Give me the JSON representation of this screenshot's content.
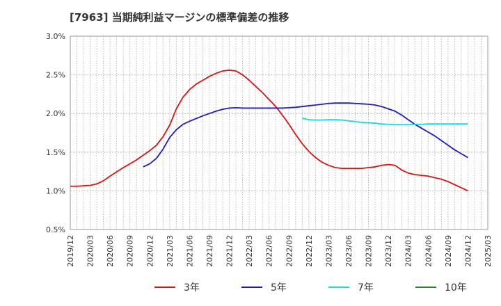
{
  "chart_data": {
    "type": "line",
    "title": "[7963]  当期純利益マージンの標準偏差の推移",
    "xlabel": "",
    "ylabel": "",
    "ylim": [
      0.5,
      3.0
    ],
    "y_ticks": [
      "0.5%",
      "1.0%",
      "1.5%",
      "2.0%",
      "2.5%",
      "3.0%"
    ],
    "x_ticks": [
      "2019/12",
      "2020/03",
      "2020/06",
      "2020/09",
      "2020/12",
      "2021/03",
      "2021/06",
      "2021/09",
      "2021/12",
      "2022/03",
      "2022/06",
      "2022/09",
      "2022/12",
      "2023/03",
      "2023/06",
      "2023/09",
      "2023/12",
      "2024/03",
      "2024/06",
      "2024/09",
      "2024/12",
      "2025/03"
    ],
    "grid": true,
    "legend_position": "bottom",
    "series": [
      {
        "name": "3年",
        "color": "#dd1111",
        "x": [
          "2019/12",
          "2020/01",
          "2020/02",
          "2020/03",
          "2020/04",
          "2020/05",
          "2020/06",
          "2020/07",
          "2020/08",
          "2020/09",
          "2020/10",
          "2020/11",
          "2020/12",
          "2021/01",
          "2021/02",
          "2021/03",
          "2021/04",
          "2021/05",
          "2021/06",
          "2021/07",
          "2021/08",
          "2021/09",
          "2021/10",
          "2021/11",
          "2021/12",
          "2022/01",
          "2022/02",
          "2022/03",
          "2022/04",
          "2022/05",
          "2022/06",
          "2022/07",
          "2022/08",
          "2022/09",
          "2022/10",
          "2022/11",
          "2022/12",
          "2023/01",
          "2023/02",
          "2023/03",
          "2023/04",
          "2023/05",
          "2023/06",
          "2023/07",
          "2023/08",
          "2023/09",
          "2023/10",
          "2023/11",
          "2023/12",
          "2024/01",
          "2024/02",
          "2024/03",
          "2024/04",
          "2024/05",
          "2024/06",
          "2024/07",
          "2024/08",
          "2024/09",
          "2024/10",
          "2024/11",
          "2024/12"
        ],
        "values": [
          1.06,
          1.06,
          1.065,
          1.07,
          1.09,
          1.13,
          1.19,
          1.245,
          1.3,
          1.35,
          1.4,
          1.46,
          1.52,
          1.59,
          1.7,
          1.85,
          2.06,
          2.21,
          2.31,
          2.38,
          2.43,
          2.48,
          2.52,
          2.55,
          2.56,
          2.55,
          2.5,
          2.43,
          2.35,
          2.27,
          2.18,
          2.09,
          1.98,
          1.86,
          1.73,
          1.61,
          1.51,
          1.43,
          1.37,
          1.33,
          1.3,
          1.29,
          1.29,
          1.29,
          1.29,
          1.3,
          1.31,
          1.33,
          1.34,
          1.33,
          1.27,
          1.23,
          1.21,
          1.2,
          1.19,
          1.17,
          1.15,
          1.12,
          1.08,
          1.04,
          1.0
        ]
      },
      {
        "name": "5年",
        "color": "#1a1acc",
        "x": [
          "2020/11",
          "2020/12",
          "2021/01",
          "2021/02",
          "2021/03",
          "2021/04",
          "2021/05",
          "2021/06",
          "2021/07",
          "2021/08",
          "2021/09",
          "2021/10",
          "2021/11",
          "2021/12",
          "2022/01",
          "2022/02",
          "2022/03",
          "2022/04",
          "2022/05",
          "2022/06",
          "2022/07",
          "2022/08",
          "2022/09",
          "2022/10",
          "2022/11",
          "2022/12",
          "2023/01",
          "2023/02",
          "2023/03",
          "2023/04",
          "2023/05",
          "2023/06",
          "2023/07",
          "2023/08",
          "2023/09",
          "2023/10",
          "2023/11",
          "2023/12",
          "2024/01",
          "2024/02",
          "2024/03",
          "2024/04",
          "2024/05",
          "2024/06",
          "2024/07",
          "2024/08",
          "2024/09",
          "2024/10",
          "2024/11",
          "2024/12"
        ],
        "values": [
          1.31,
          1.35,
          1.42,
          1.54,
          1.69,
          1.79,
          1.86,
          1.9,
          1.935,
          1.97,
          2.0,
          2.03,
          2.055,
          2.07,
          2.075,
          2.07,
          2.07,
          2.07,
          2.07,
          2.07,
          2.07,
          2.07,
          2.075,
          2.08,
          2.09,
          2.1,
          2.11,
          2.12,
          2.13,
          2.135,
          2.135,
          2.135,
          2.13,
          2.125,
          2.12,
          2.11,
          2.09,
          2.06,
          2.03,
          1.98,
          1.92,
          1.86,
          1.81,
          1.76,
          1.71,
          1.65,
          1.59,
          1.53,
          1.48,
          1.43
        ]
      },
      {
        "name": "7年",
        "color": "#11dddd",
        "x": [
          "2022/11",
          "2022/12",
          "2023/01",
          "2023/02",
          "2023/03",
          "2023/04",
          "2023/05",
          "2023/06",
          "2023/07",
          "2023/08",
          "2023/09",
          "2023/10",
          "2023/11",
          "2023/12",
          "2024/01",
          "2024/02",
          "2024/03",
          "2024/04",
          "2024/05",
          "2024/06",
          "2024/07",
          "2024/08",
          "2024/09",
          "2024/10",
          "2024/11",
          "2024/12"
        ],
        "values": [
          1.94,
          1.92,
          1.915,
          1.915,
          1.92,
          1.92,
          1.915,
          1.905,
          1.895,
          1.885,
          1.88,
          1.875,
          1.865,
          1.86,
          1.855,
          1.855,
          1.855,
          1.86,
          1.86,
          1.865,
          1.865,
          1.865,
          1.865,
          1.865,
          1.865,
          1.865
        ]
      },
      {
        "name": "10年",
        "color": "#228822",
        "x": [],
        "values": []
      }
    ]
  }
}
